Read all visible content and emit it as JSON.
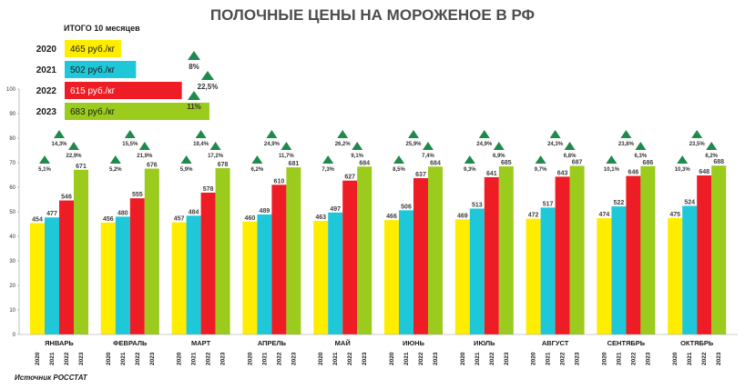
{
  "chart_data": {
    "type": "bar",
    "title": "ПОЛОЧНЫЕ ЦЕНЫ НА МОРОЖЕНОЕ В РФ",
    "source": "Источник РОССТАТ",
    "ylim": [
      0,
      100
    ],
    "yticks": [
      "0",
      "10",
      "20",
      "30",
      "40",
      "50",
      "60",
      "70",
      "80",
      "90",
      "100"
    ],
    "categories": [
      "ЯНВАРЬ",
      "ФЕВРАЛЬ",
      "МАРТ",
      "АПРЕЛЬ",
      "МАЙ",
      "ИЮНЬ",
      "ИЮЛЬ",
      "АВГУСТ",
      "СЕНТЯБРЬ",
      "ОКТЯБРЬ"
    ],
    "years": [
      "2020",
      "2021",
      "2022",
      "2023"
    ],
    "series": [
      {
        "name": "2020",
        "color": "#ffed00",
        "values": [
          454,
          456,
          457,
          460,
          463,
          466,
          469,
          472,
          474,
          475
        ]
      },
      {
        "name": "2021",
        "color": "#1fc8d9",
        "values": [
          477,
          480,
          484,
          489,
          497,
          506,
          513,
          517,
          522,
          524
        ]
      },
      {
        "name": "2022",
        "color": "#ee1c24",
        "values": [
          546,
          555,
          578,
          610,
          627,
          637,
          641,
          643,
          646,
          648
        ]
      },
      {
        "name": "2023",
        "color": "#9bcb1c",
        "values": [
          671,
          676,
          678,
          681,
          684,
          684,
          685,
          687,
          686,
          688
        ]
      }
    ],
    "growth": [
      [
        "5,1%",
        "14,3%",
        "22,9%"
      ],
      [
        "5,2%",
        "15,5%",
        "21,9%"
      ],
      [
        "5,9%",
        "19,4%",
        "17,2%"
      ],
      [
        "6,2%",
        "24,9%",
        "11,7%"
      ],
      [
        "7,3%",
        "26,2%",
        "9,1%"
      ],
      [
        "8,5%",
        "25,9%",
        "7,4%"
      ],
      [
        "9,3%",
        "24,9%",
        "6,9%"
      ],
      [
        "9,7%",
        "24,3%",
        "6,8%"
      ],
      [
        "10,1%",
        "23,8%",
        "6,3%"
      ],
      [
        "10,3%",
        "23,5%",
        "6,2%"
      ]
    ],
    "summary": {
      "title": "ИТОГО 10 месяцев",
      "items": [
        {
          "year": "2020",
          "label": "465 руб./кг",
          "value": 465
        },
        {
          "year": "2021",
          "label": "502 руб./кг",
          "value": 502
        },
        {
          "year": "2022",
          "label": "615 руб./кг",
          "value": 615
        },
        {
          "year": "2023",
          "label": "683 руб./кг",
          "value": 683
        }
      ],
      "growth": [
        "8%",
        "22,5%",
        "11%"
      ]
    },
    "colors": {
      "triangle": "#1f8a4c",
      "axis": "#999999"
    },
    "grid": false,
    "legend": "top-left"
  }
}
